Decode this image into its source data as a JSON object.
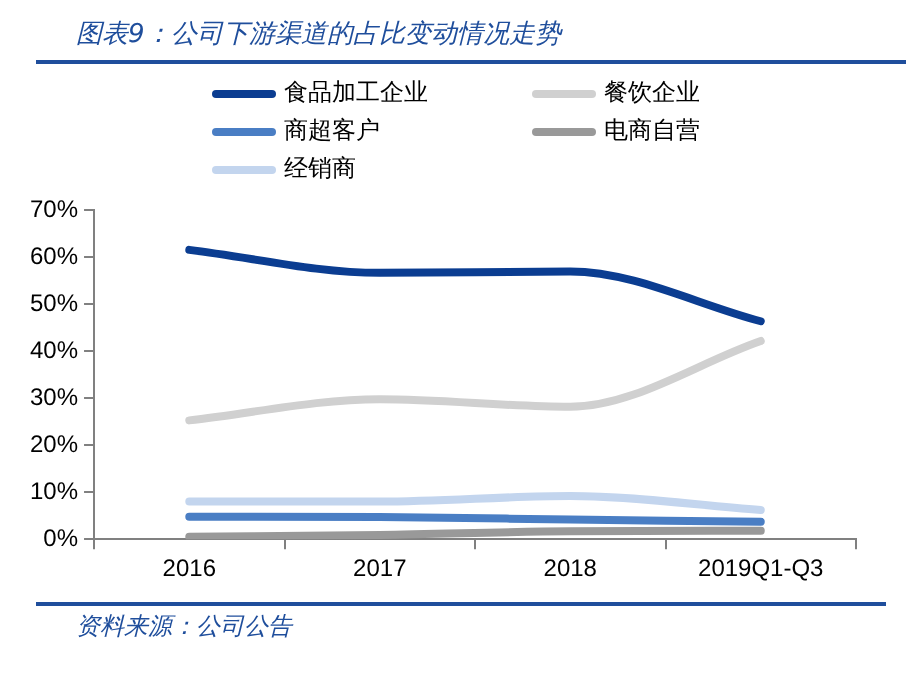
{
  "chart_data": {
    "type": "line",
    "title": "图表9：公司下游渠道的占比变动情况走势",
    "annotations": [
      "资料来源：公司公告"
    ],
    "categories": [
      "2016",
      "2017",
      "2018",
      "2019Q1-Q3"
    ],
    "series": [
      {
        "name": "食品加工企业",
        "color": "#0b3d91",
        "values": [
          61.6,
          56.7,
          57,
          46.4
        ]
      },
      {
        "name": "餐饮企业",
        "color": "#d0d0d0",
        "values": [
          25.3,
          29.8,
          28.2,
          42.2
        ]
      },
      {
        "name": "商超客户",
        "color": "#4a7ec4",
        "values": [
          4.8,
          4.7,
          4.2,
          3.7
        ]
      },
      {
        "name": "电商自营",
        "color": "#999999",
        "values": [
          0.5,
          0.9,
          1.7,
          1.8
        ]
      },
      {
        "name": "经销商",
        "color": "#c3d5ee",
        "values": [
          8,
          8,
          9.2,
          6.2
        ]
      }
    ],
    "ylim": [
      0,
      70
    ],
    "yticks": [
      {
        "value": 0,
        "label": "0%"
      },
      {
        "value": 10,
        "label": "10%"
      },
      {
        "value": 20,
        "label": "20%"
      },
      {
        "value": 30,
        "label": "30%"
      },
      {
        "value": 40,
        "label": "40%"
      },
      {
        "value": 50,
        "label": "50%"
      },
      {
        "value": 60,
        "label": "60%"
      },
      {
        "value": 70,
        "label": "70%"
      }
    ],
    "grid": false,
    "legend": "top",
    "marker": "none",
    "line_style": "solid"
  }
}
